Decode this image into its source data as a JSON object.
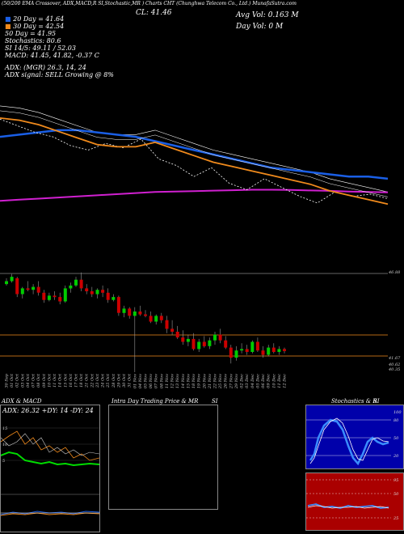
{
  "header": {
    "top_line": "(50/200 EMA Crossover, ADX,MACD,R   SI,Stochastic,MR   ) Charts   CHT   (Chunghwa Telecom Co., Ltd.) MunafaSutra.com",
    "cl": "CL: 41.46",
    "avg_vol": "Avg Vol: 0.163 M",
    "day_vol": "Day Vol: 0   M"
  },
  "legend": {
    "day20": "20 Day = 41.64",
    "day30": "30 Day = 42.54",
    "day50": "50 Day = 41.95",
    "stoch": "Stochastics: 80.6",
    "si": "SI 14/5: 49.11 / 52.03",
    "macd": "MACD: 41.45, 41.82, -0.37 C",
    "adx": "ADX:                      (MGR) 26.3, 14, 24",
    "signal": "ADX signal: SELL Growing @ 8%"
  },
  "chart_data": [
    {
      "type": "line",
      "title": "",
      "series": [
        {
          "values": [
            45.6,
            45.5,
            45.3,
            45.0,
            44.7,
            44.4,
            44.3,
            44.3,
            44.5,
            44.2,
            43.9,
            43.6,
            43.4,
            43.2,
            43.0,
            42.8,
            42.6,
            42.3,
            42.1,
            41.9,
            41.7
          ]
        },
        {
          "values": [
            44.2,
            44.3,
            44.4,
            44.5,
            44.5,
            44.4,
            44.3,
            44.2,
            44.0,
            43.8,
            43.6,
            43.4,
            43.2,
            43.0,
            42.8,
            42.7,
            42.6,
            42.5,
            42.4,
            42.4,
            42.3
          ]
        },
        {
          "values": [
            41.3,
            41.35,
            41.4,
            41.45,
            41.5,
            41.55,
            41.6,
            41.65,
            41.7,
            41.72,
            41.74,
            41.76,
            41.78,
            41.8,
            41.8,
            41.79,
            41.77,
            41.75,
            41.72,
            41.7,
            41.68
          ]
        },
        {
          "values": [
            45.0,
            44.7,
            44.4,
            44.2,
            43.8,
            43.6,
            43.9,
            43.7,
            44.1,
            43.2,
            42.9,
            42.4,
            42.8,
            42.1,
            41.8,
            42.3,
            41.9,
            41.5,
            41.2,
            41.7,
            41.5,
            41.6,
            41.4
          ]
        }
      ]
    },
    {
      "type": "candlestick",
      "title": "",
      "ticks": [
        "46.88",
        "41.67",
        "40.62",
        "40.35"
      ],
      "categories": [
        "30 Sep",
        "01 Oct",
        "02 Oct",
        "03 Oct",
        "04 Oct",
        "07 Oct",
        "08 Oct",
        "09 Oct",
        "10 Oct",
        "11 Oct",
        "14 Oct",
        "15 Oct",
        "16 Oct",
        "17 Oct",
        "18 Oct",
        "21 Oct",
        "22 Oct",
        "23 Oct",
        "24 Oct",
        "25 Oct",
        "28 Oct",
        "29 Oct",
        "30 Oct",
        "31 Oct",
        "01 Nov",
        "04 Nov",
        "05 Nov",
        "06 Nov",
        "07 Nov",
        "08 Nov",
        "11 Nov",
        "12 Nov",
        "13 Nov",
        "14 Nov",
        "15 Nov",
        "18 Nov",
        "19 Nov",
        "20 Nov",
        "21 Nov",
        "22 Nov",
        "25 Nov",
        "26 Nov",
        "27 Nov",
        "29 Nov",
        "02 Dec",
        "03 Dec",
        "04 Dec",
        "05 Dec",
        "06 Dec",
        "09 Dec",
        "10 Dec",
        "11 Dec",
        "12 Dec"
      ],
      "candles": [
        [
          46.1,
          46.5,
          46.0,
          46.3
        ],
        [
          46.3,
          46.8,
          46.2,
          46.6
        ],
        [
          46.5,
          46.6,
          45.2,
          45.4
        ],
        [
          45.4,
          45.9,
          45.1,
          45.8
        ],
        [
          45.8,
          46.3,
          45.6,
          45.7
        ],
        [
          45.7,
          46.1,
          45.4,
          45.9
        ],
        [
          45.9,
          46.3,
          45.3,
          45.5
        ],
        [
          45.5,
          45.7,
          44.8,
          45.0
        ],
        [
          45.0,
          45.5,
          44.9,
          45.3
        ],
        [
          45.3,
          45.6,
          45.0,
          45.2
        ],
        [
          45.2,
          45.5,
          44.7,
          44.9
        ],
        [
          44.9,
          46.0,
          44.8,
          45.8
        ],
        [
          45.8,
          46.2,
          45.5,
          46.0
        ],
        [
          46.0,
          46.6,
          45.9,
          46.4
        ],
        [
          46.4,
          46.9,
          45.6,
          45.8
        ],
        [
          45.8,
          46.1,
          45.4,
          45.6
        ],
        [
          45.6,
          45.9,
          45.2,
          45.4
        ],
        [
          45.4,
          45.8,
          45.1,
          45.7
        ],
        [
          45.7,
          46.0,
          45.2,
          45.5
        ],
        [
          45.5,
          45.8,
          44.8,
          45.0
        ],
        [
          45.0,
          45.4,
          44.9,
          45.2
        ],
        [
          45.2,
          45.3,
          43.9,
          44.1
        ],
        [
          44.1,
          44.6,
          43.8,
          44.4
        ],
        [
          44.4,
          44.5,
          43.7,
          43.9
        ],
        [
          43.9,
          44.5,
          40.0,
          44.2
        ],
        [
          44.2,
          44.6,
          43.9,
          44.0
        ],
        [
          44.0,
          44.3,
          43.8,
          43.9
        ],
        [
          43.9,
          44.2,
          43.4,
          43.5
        ],
        [
          43.5,
          44.0,
          43.3,
          43.9
        ],
        [
          43.9,
          44.1,
          43.4,
          43.6
        ],
        [
          43.6,
          43.9,
          42.7,
          43.0
        ],
        [
          43.0,
          43.6,
          42.6,
          42.8
        ],
        [
          42.8,
          43.2,
          42.3,
          42.4
        ],
        [
          42.4,
          42.9,
          41.9,
          42.1
        ],
        [
          42.1,
          42.6,
          41.8,
          42.3
        ],
        [
          42.3,
          42.7,
          41.5,
          41.6
        ],
        [
          41.6,
          42.3,
          41.4,
          42.1
        ],
        [
          42.1,
          42.5,
          41.7,
          41.8
        ],
        [
          41.8,
          42.4,
          41.6,
          42.2
        ],
        [
          42.2,
          42.8,
          41.9,
          42.6
        ],
        [
          42.6,
          43.0,
          42.0,
          42.2
        ],
        [
          42.2,
          42.5,
          41.6,
          41.7
        ],
        [
          41.7,
          41.9,
          40.6,
          41.0
        ],
        [
          41.0,
          41.8,
          40.8,
          41.5
        ],
        [
          41.5,
          42.0,
          41.3,
          41.6
        ],
        [
          41.6,
          41.9,
          41.2,
          41.4
        ],
        [
          41.4,
          42.2,
          41.3,
          42.1
        ],
        [
          42.1,
          42.4,
          41.4,
          41.5
        ],
        [
          41.5,
          41.8,
          41.0,
          41.2
        ],
        [
          41.2,
          41.9,
          41.1,
          41.7
        ],
        [
          41.7,
          42.0,
          41.3,
          41.4
        ],
        [
          41.4,
          41.8,
          41.2,
          41.6
        ],
        [
          41.6,
          41.7,
          41.3,
          41.46
        ]
      ]
    },
    {
      "type": "line",
      "title": "ADX  & MACD",
      "labels": [
        "ADX: 26.32  +DY: 14  -DY: 24"
      ],
      "ticks": [
        "15",
        "10",
        "5"
      ],
      "ylim": [
        0,
        20
      ]
    },
    {
      "type": "line",
      "title": "Intra Day Trading Price  & MR",
      "subtitle": "SI"
    },
    {
      "type": "line",
      "title": "Stochastics & R",
      "subtitle": "SI",
      "ticks": [
        "100",
        "80",
        "50",
        "20",
        "95",
        "25"
      ],
      "values": [
        80.6
      ]
    }
  ],
  "colors": {
    "ema_fast": "#1a5fe6",
    "ema_slow": "#f08a1c",
    "ema_mid": "#d020d0",
    "up": "#00cc00",
    "down": "#cc0000",
    "stoch_bg": "#0000aa",
    "rsi_bg": "#aa0000"
  }
}
